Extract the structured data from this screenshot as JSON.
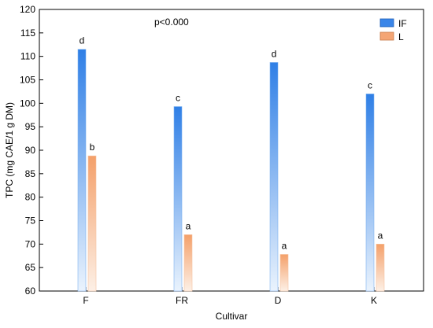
{
  "chart_data": {
    "type": "bar",
    "annotation": "p<0.000",
    "xlabel": "Cultivar",
    "ylabel": "TPC  (mg CAE/1 g DM)",
    "categories": [
      "F",
      "FR",
      "D",
      "K"
    ],
    "ylim": [
      60,
      120
    ],
    "yticks": [
      60,
      65,
      70,
      75,
      80,
      85,
      90,
      95,
      100,
      105,
      110,
      115,
      120
    ],
    "grid": false,
    "legend_position": "top-right",
    "series": [
      {
        "name": "IF",
        "color": "#3b86e8",
        "values": [
          111.5,
          99.3,
          108.7,
          102.0
        ],
        "labels": [
          "d",
          "c",
          "d",
          "c"
        ]
      },
      {
        "name": "L",
        "color": "#f4a574",
        "values": [
          88.8,
          72.0,
          67.8,
          70.0
        ],
        "labels": [
          "b",
          "a",
          "a",
          "a"
        ]
      }
    ]
  }
}
